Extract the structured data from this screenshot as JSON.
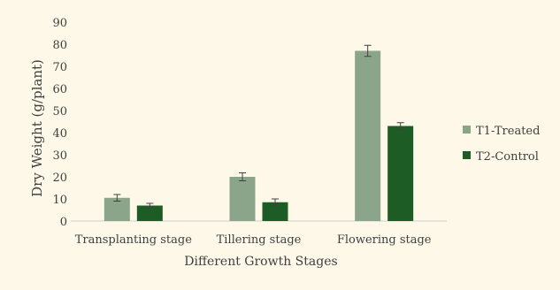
{
  "chart_data": {
    "type": "bar",
    "title": "",
    "xlabel": "Different Growth Stages",
    "ylabel": "Dry Weight (g/plant)",
    "ylim": [
      0,
      90
    ],
    "yticks": [
      0,
      10,
      20,
      30,
      40,
      50,
      60,
      70,
      80,
      90
    ],
    "grid": false,
    "legend_position": "right",
    "categories": [
      "Transplanting stage",
      "Tillering stage",
      "Flowering stage"
    ],
    "series": [
      {
        "name": "T1-Treated",
        "color": "#8aa58a",
        "values": [
          10.5,
          20,
          77
        ],
        "errors": [
          1.5,
          1.8,
          2.5
        ]
      },
      {
        "name": "T2-Control",
        "color": "#1e5c26",
        "values": [
          7,
          8.5,
          43
        ],
        "errors": [
          1,
          1.5,
          1.5
        ]
      }
    ]
  }
}
